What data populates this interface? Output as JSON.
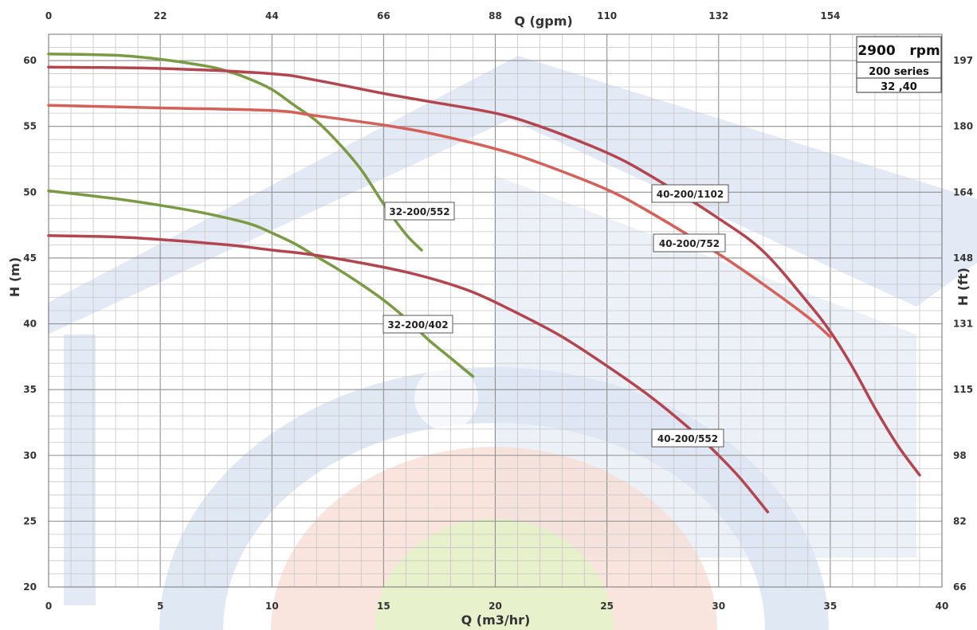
{
  "chart_data": {
    "type": "line",
    "xlabel_bottom": "Q (m3/hr)",
    "xlabel_top": "Q (gpm)",
    "ylabel_left": "H (m)",
    "ylabel_right": "H (ft)",
    "xlim": [
      0,
      40
    ],
    "ylim": [
      20,
      62
    ],
    "x_ticks_bottom": [
      "0",
      "5",
      "10",
      "15",
      "20",
      "25",
      "30",
      "35",
      "40"
    ],
    "x_ticks_top": [
      "0",
      "22",
      "44",
      "66",
      "88",
      "110",
      "132",
      "154"
    ],
    "y_ticks_left": [
      "20",
      "25",
      "30",
      "35",
      "40",
      "45",
      "50",
      "55",
      "60"
    ],
    "y_ticks_right": [
      "66",
      "82",
      "98",
      "115",
      "131",
      "148",
      "164",
      "180",
      "197"
    ],
    "grid": true,
    "info_box": {
      "speed": "2900   rpm",
      "series": "200 series",
      "sizes": "32 ,40"
    },
    "colors": {
      "green": "#7a9a44",
      "red_dark": "#b2454f",
      "red_light": "#d4605a"
    },
    "series": [
      {
        "name": "32-200/552",
        "color": "#7a9a44",
        "x": [
          0,
          3,
          5,
          7,
          8,
          9,
          10,
          11,
          12,
          13,
          14,
          15,
          16,
          16.7
        ],
        "y": [
          60.5,
          60.4,
          60.1,
          59.6,
          59.2,
          58.6,
          57.8,
          56.6,
          55.4,
          53.7,
          51.7,
          49.1,
          46.8,
          45.6
        ]
      },
      {
        "name": "32-200/402",
        "color": "#7a9a44",
        "x": [
          0,
          3,
          5,
          7,
          9,
          10,
          11,
          12,
          13,
          14,
          15,
          16,
          17,
          18,
          19
        ],
        "y": [
          50.1,
          49.5,
          49.0,
          48.4,
          47.6,
          46.9,
          46.1,
          45.1,
          44.1,
          43.0,
          41.8,
          40.4,
          38.8,
          37.4,
          36.0
        ]
      },
      {
        "name": "40-200/1102",
        "color": "#b2454f",
        "x": [
          0,
          5,
          10,
          12,
          15,
          17,
          20,
          22,
          25,
          27,
          30,
          32,
          34,
          35,
          36,
          37,
          38,
          39
        ],
        "y": [
          59.5,
          59.4,
          59.0,
          58.5,
          57.5,
          56.9,
          56.0,
          55.0,
          53.0,
          51.2,
          48.0,
          45.5,
          41.6,
          39.4,
          36.7,
          33.6,
          30.8,
          28.5
        ]
      },
      {
        "name": "40-200/752",
        "color": "#d4605a",
        "x": [
          0,
          5,
          10,
          12,
          15,
          17,
          20,
          22,
          25,
          27,
          30,
          32,
          34,
          35
        ],
        "y": [
          56.6,
          56.4,
          56.2,
          55.8,
          55.1,
          54.5,
          53.3,
          52.2,
          50.2,
          48.4,
          45.3,
          43.0,
          40.5,
          39.0
        ]
      },
      {
        "name": "40-200/552",
        "color": "#b2454f",
        "x": [
          0,
          3,
          5,
          8,
          10,
          12,
          15,
          17,
          19,
          21,
          23,
          25,
          27,
          29,
          30,
          31,
          32.2
        ],
        "y": [
          46.7,
          46.6,
          46.4,
          46.0,
          45.6,
          45.2,
          44.3,
          43.5,
          42.4,
          40.8,
          39.0,
          36.8,
          34.4,
          31.6,
          30.0,
          28.2,
          25.7
        ]
      }
    ]
  }
}
